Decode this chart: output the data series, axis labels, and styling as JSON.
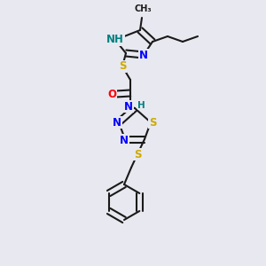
{
  "bg_color": "#e8e8f0",
  "bond_color": "#1a1a1a",
  "bond_width": 1.5,
  "colors": {
    "N": "#0000ff",
    "NH": "#008080",
    "S": "#ccaa00",
    "O": "#ff0000",
    "C": "#1a1a1a"
  },
  "font_size_atom": 8.5,
  "font_size_small": 7.5
}
